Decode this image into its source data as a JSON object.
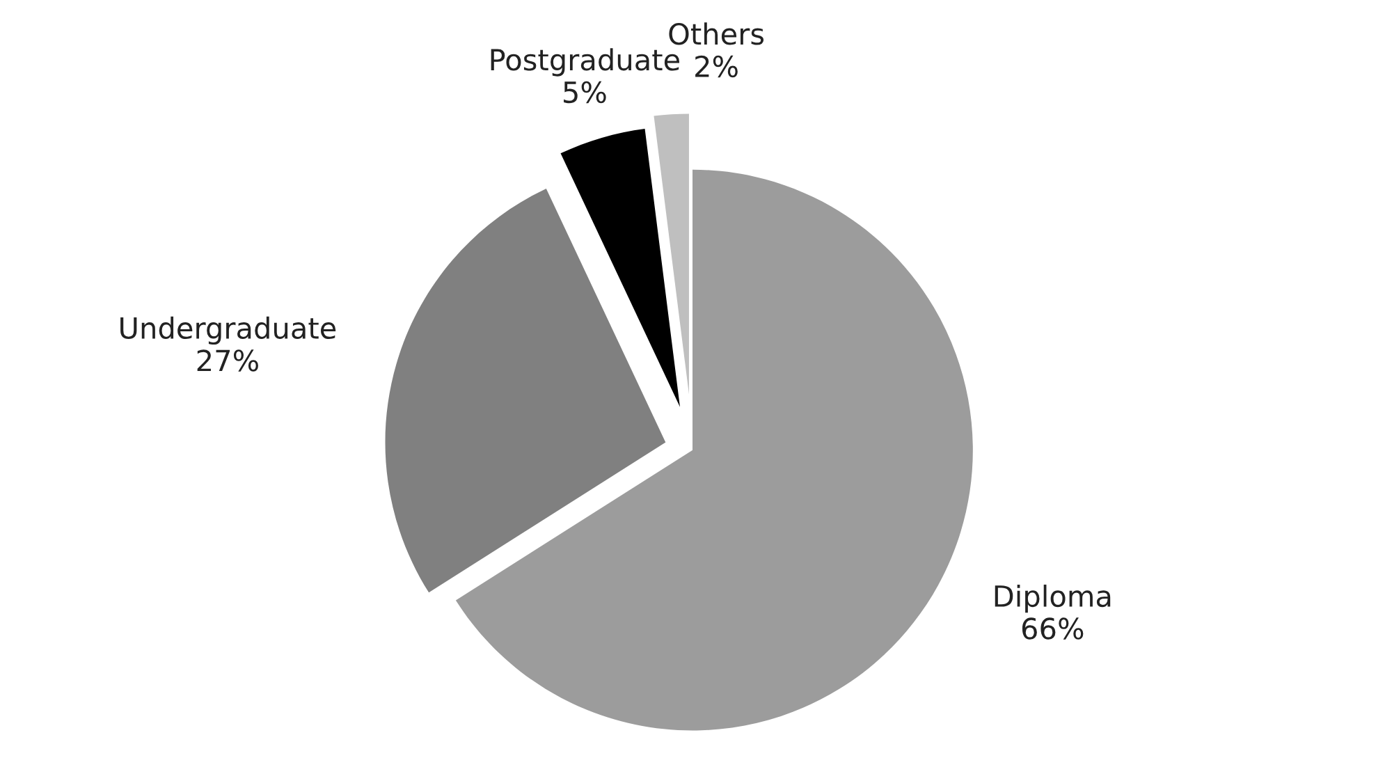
{
  "chart_data": {
    "type": "pie",
    "categories": [
      "Diploma",
      "Undergraduate",
      "Postgraduate",
      "Others"
    ],
    "values": [
      66,
      27,
      5,
      2
    ],
    "value_labels": [
      "66%",
      "27%",
      "5%",
      "2%"
    ],
    "colors": [
      "#9c9c9c",
      "#808080",
      "#000000",
      "#bfbfbf"
    ],
    "legend": false
  }
}
